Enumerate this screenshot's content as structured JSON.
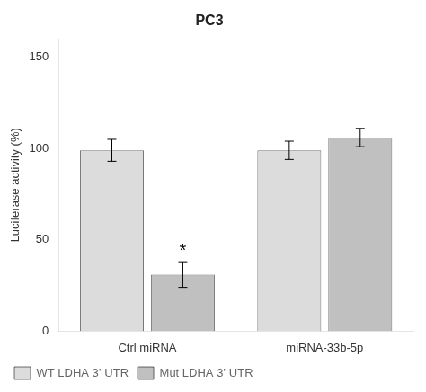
{
  "chart_data": {
    "type": "bar",
    "title": "PC3",
    "ylabel": "Luciferase activity (%)",
    "categories": [
      "Ctrl miRNA",
      "miRNA-33b-5p"
    ],
    "series": [
      {
        "name": "WT LDHA 3’ UTR",
        "color": "#dcdcdc",
        "values": [
          99,
          99
        ],
        "errors": [
          6,
          5
        ]
      },
      {
        "name": "Mut LDHA 3’ UTR",
        "color": "#c0c0c0",
        "values": [
          31,
          106
        ],
        "errors": [
          7,
          5
        ]
      }
    ],
    "annotations": [
      {
        "text": "*",
        "category": "Ctrl miRNA",
        "series": "Mut LDHA 3’ UTR"
      }
    ],
    "ylim": [
      0,
      160
    ],
    "yticks": [
      0,
      50,
      100,
      150
    ],
    "grid": false,
    "legend": "bottom"
  }
}
